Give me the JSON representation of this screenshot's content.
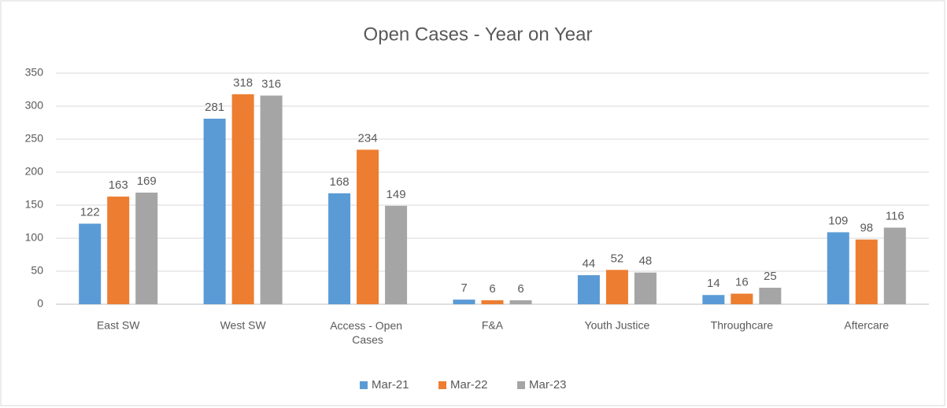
{
  "chart_data": {
    "type": "bar",
    "title": "Open Cases - Year on Year",
    "categories": [
      "East SW",
      "West SW",
      "Access - Open Cases",
      "F&A",
      "Youth Justice",
      "Throughcare",
      "Aftercare"
    ],
    "series": [
      {
        "name": "Mar-21",
        "color": "#5b9bd5",
        "values": [
          122,
          281,
          168,
          7,
          44,
          14,
          109
        ]
      },
      {
        "name": "Mar-22",
        "color": "#ed7d31",
        "values": [
          163,
          318,
          234,
          6,
          52,
          16,
          98
        ]
      },
      {
        "name": "Mar-23",
        "color": "#a5a5a5",
        "values": [
          169,
          316,
          149,
          6,
          48,
          25,
          116
        ]
      }
    ],
    "ylim": [
      0,
      350
    ],
    "yticks": [
      0,
      50,
      100,
      150,
      200,
      250,
      300,
      350
    ],
    "grid": true,
    "legend": "bottom"
  }
}
